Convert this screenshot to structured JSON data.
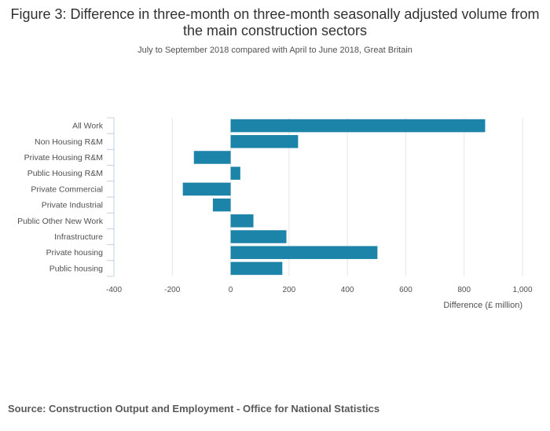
{
  "title": "Figure 3: Difference in three-month on three-month seasonally adjusted volume from the main construction sectors",
  "subtitle": "July to September 2018 compared with April to June 2018, Great Britain",
  "source": "Source: Construction Output and Employment - Office for National Statistics",
  "colors": {
    "bar": "#1b84a8",
    "grid": "#e6e6e6",
    "axis": "#c0d0e0"
  },
  "chart_data": {
    "type": "bar",
    "orientation": "horizontal",
    "categories": [
      "All Work",
      "Non Housing R&M",
      "Private Housing R&M",
      "Public Housing R&M",
      "Private Commercial",
      "Private Industrial",
      "Public Other New Work",
      "Infrastructure",
      "Private housing",
      "Public housing"
    ],
    "values": [
      872,
      231,
      -126,
      33,
      -164,
      -61,
      78,
      191,
      503,
      177
    ],
    "xlabel": "Difference (£ million)",
    "ylabel": "",
    "xlim": [
      -400,
      1000
    ],
    "xticks": [
      -400,
      -200,
      0,
      200,
      400,
      600,
      800,
      1000
    ],
    "xtick_labels": [
      "-400",
      "-200",
      "0",
      "200",
      "400",
      "600",
      "800",
      "1,000"
    ],
    "grid": true
  }
}
